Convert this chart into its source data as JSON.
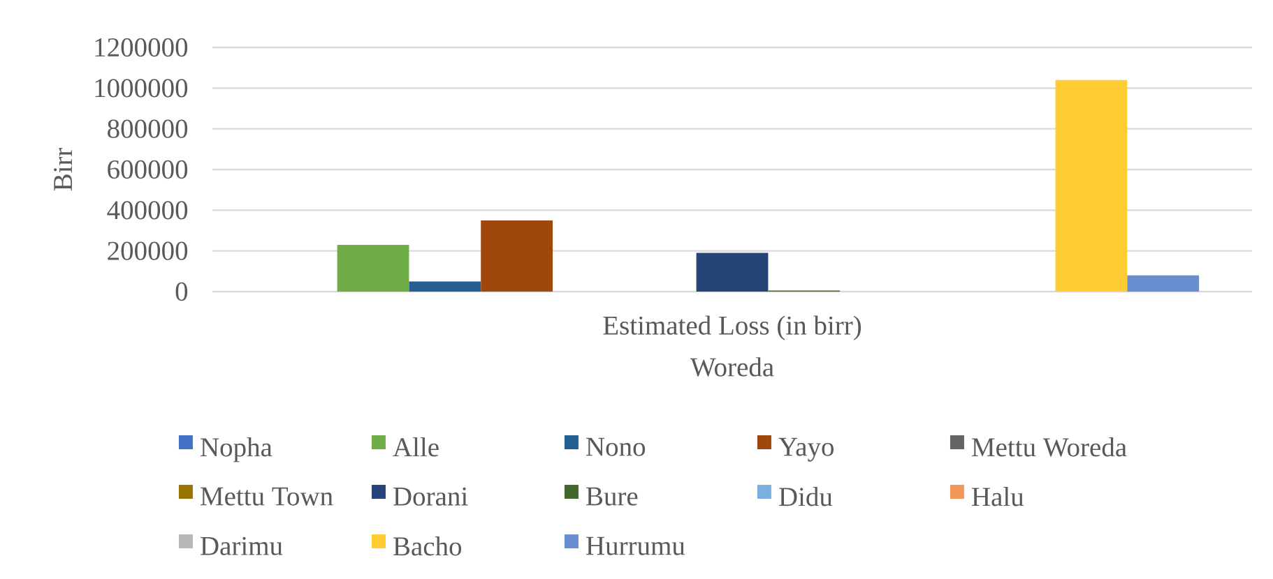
{
  "chart_data": {
    "type": "bar",
    "categories": [
      "Estimated Loss (in birr)"
    ],
    "xlabel": "Woreda",
    "ylabel": "Birr",
    "ylim": [
      0,
      1200000
    ],
    "yticks": [
      0,
      200000,
      400000,
      600000,
      800000,
      1000000,
      1200000
    ],
    "grid": "y",
    "legend": "bottom",
    "series": [
      {
        "name": "Nopha",
        "color": "#4472c4",
        "values": [
          0
        ]
      },
      {
        "name": "Alle",
        "color": "#70ad47",
        "values": [
          230000
        ]
      },
      {
        "name": "Nono",
        "color": "#255e91",
        "values": [
          50000
        ]
      },
      {
        "name": "Yayo",
        "color": "#9e480e",
        "values": [
          350000
        ]
      },
      {
        "name": "Mettu Woreda",
        "color": "#636363",
        "values": [
          0
        ]
      },
      {
        "name": "Mettu Town",
        "color": "#997300",
        "values": [
          0
        ]
      },
      {
        "name": "Dorani",
        "color": "#264478",
        "values": [
          190000
        ]
      },
      {
        "name": "Bure",
        "color": "#43682b",
        "values": [
          5000
        ]
      },
      {
        "name": "Didu",
        "color": "#7cafdd",
        "values": [
          0
        ]
      },
      {
        "name": "Halu",
        "color": "#f1975a",
        "values": [
          0
        ]
      },
      {
        "name": "Darimu",
        "color": "#b7b7b7",
        "values": [
          0
        ]
      },
      {
        "name": "Bacho",
        "color": "#ffcd33",
        "values": [
          1040000
        ]
      },
      {
        "name": "Hurrumu",
        "color": "#698ed0",
        "values": [
          80000
        ]
      }
    ]
  }
}
